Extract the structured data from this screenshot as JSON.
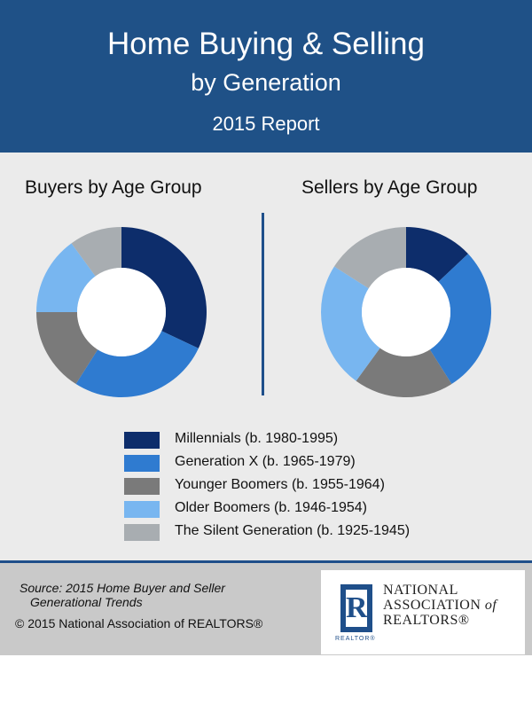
{
  "header": {
    "title_line1": "Home Buying & Selling",
    "title_line2": "by Generation",
    "subtitle": "2015 Report"
  },
  "colors": {
    "header_bg": "#1f5187",
    "millennials": "#0d2d6b",
    "generation_x": "#2f7bd0",
    "younger_boomers": "#7a7a7a",
    "older_boomers": "#78b6f0",
    "silent_generation": "#a8adb1"
  },
  "legend": [
    {
      "label": "Millennials (b. 1980-1995)",
      "color": "#0d2d6b"
    },
    {
      "label": "Generation X (b. 1965-1979)",
      "color": "#2f7bd0"
    },
    {
      "label": "Younger Boomers (b. 1955-1964)",
      "color": "#7a7a7a"
    },
    {
      "label": "Older Boomers (b. 1946-1954)",
      "color": "#78b6f0"
    },
    {
      "label": "The Silent Generation (b. 1925-1945)",
      "color": "#a8adb1"
    }
  ],
  "chart_data": [
    {
      "type": "pie",
      "title": "Buyers by Age Group",
      "categories": [
        "Millennials (b. 1980-1995)",
        "Generation X (b. 1965-1979)",
        "Younger Boomers (b. 1955-1964)",
        "Older Boomers (b. 1946-1954)",
        "The Silent Generation (b. 1925-1945)"
      ],
      "values": [
        32,
        27,
        16,
        15,
        10
      ],
      "donut": true
    },
    {
      "type": "pie",
      "title": "Sellers by Age Group",
      "categories": [
        "Millennials (b. 1980-1995)",
        "Generation X (b. 1965-1979)",
        "Younger Boomers (b. 1955-1964)",
        "Older Boomers (b. 1946-1954)",
        "The Silent Generation (b. 1925-1945)"
      ],
      "values": [
        13,
        28,
        19,
        24,
        16
      ],
      "donut": true
    }
  ],
  "footer": {
    "source_line1": "Source: 2015 Home Buyer and Seller",
    "source_line2": "Generational Trends",
    "copyright": "© 2015 National Association of REALTORS®",
    "logo": {
      "line1": "NATIONAL",
      "line2_a": "ASSOCIATION",
      "line2_b": "of",
      "line3": "REALTORS®",
      "mark_letter": "R",
      "mark_caption": "REALTOR®"
    }
  }
}
